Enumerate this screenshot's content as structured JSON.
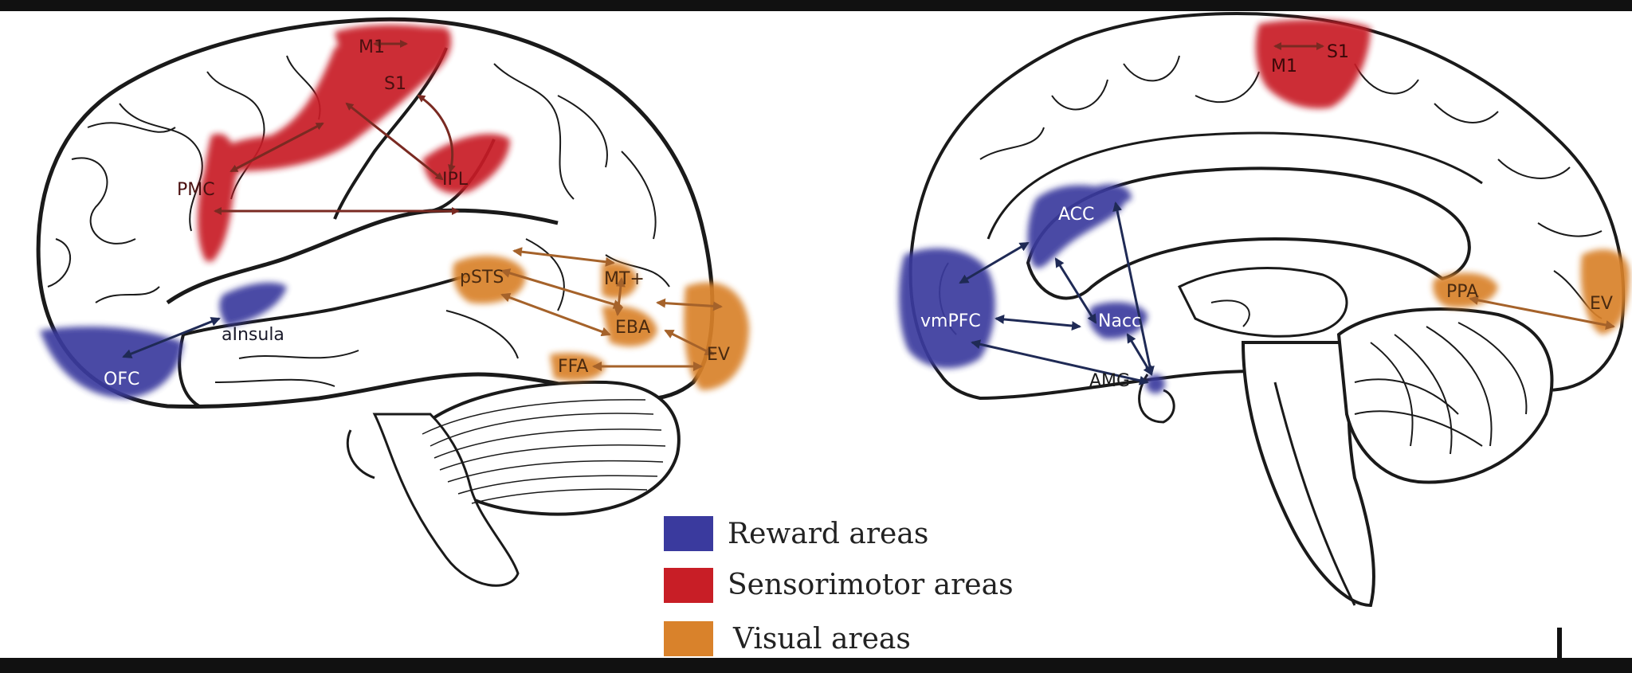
{
  "colors": {
    "reward": "#3a3a9e",
    "sensorimotor": "#c81e26",
    "visual": "#d9822b",
    "arrow_sensorimotor": "#7a2a22",
    "arrow_visual": "#a5622a",
    "arrow_reward": "#1f2a55",
    "outline": "#1a1a1a",
    "background": "#111111"
  },
  "lateral": {
    "M1": "M1",
    "S1": "S1",
    "PMC": "PMC",
    "IPL": "IPL",
    "pSTS": "pSTS",
    "MT": "MT+",
    "EBA": "EBA",
    "FFA": "FFA",
    "EV": "EV",
    "OFC": "OFC",
    "aInsula": "aInsula"
  },
  "medial": {
    "M1": "M1",
    "S1": "S1",
    "ACC": "ACC",
    "vmPFC": "vmPFC",
    "Nacc": "Nacc",
    "AMG": "AMG",
    "PPA": "PPA",
    "EV": "EV"
  },
  "legend": {
    "reward": "Reward areas",
    "sensorimotor": "Sensorimotor areas",
    "visual": "Visual areas"
  }
}
